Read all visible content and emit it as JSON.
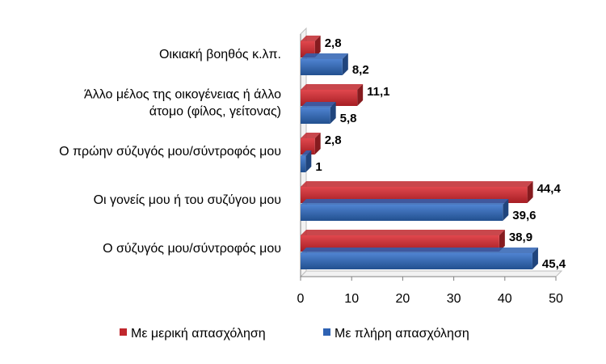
{
  "chart_data": {
    "type": "bar",
    "orientation": "horizontal",
    "categories": [
      [
        "Οικιακή βοηθός κ.λπ."
      ],
      [
        "Άλλο μέλος της οικογένειας ή άλλο",
        "άτομο (φίλος, γείτονας)"
      ],
      [
        "Ο πρώην σύζυγός μου/σύντροφός μου"
      ],
      [
        "Οι γονείς μου ή του συζύγου μου"
      ],
      [
        "Ο σύζυγός μου/σύντροφός μου"
      ]
    ],
    "series": [
      {
        "name": "Με μερική απασχόληση",
        "color": "#c0272d",
        "values": [
          2.8,
          11.1,
          2.8,
          44.4,
          38.9
        ],
        "labels": [
          "2,8",
          "11,1",
          "2,8",
          "44,4",
          "38,9"
        ]
      },
      {
        "name": "Με πλήρη απασχόληση",
        "color": "#2e62b3",
        "values": [
          8.2,
          5.8,
          1,
          39.6,
          45.4
        ],
        "labels": [
          "8,2",
          "5,8",
          "1",
          "39,6",
          "45,4"
        ]
      }
    ],
    "xlim": [
      0,
      50
    ],
    "xticks": [
      "0",
      "10",
      "20",
      "30",
      "40",
      "50"
    ],
    "grid": false,
    "legend_position": "bottom"
  }
}
